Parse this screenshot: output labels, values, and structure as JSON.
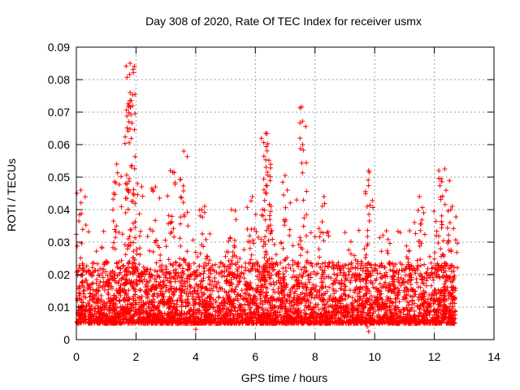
{
  "chart_data": {
    "type": "scatter",
    "title": "Day 308 of 2020, Rate Of TEC Index for receiver usmx",
    "xlabel": "GPS time / hours",
    "ylabel": "ROTI / TECUs",
    "xlim": [
      0,
      14
    ],
    "ylim": [
      0,
      0.09
    ],
    "x_ticks": [
      "0",
      "2",
      "4",
      "6",
      "8",
      "10",
      "12",
      "14"
    ],
    "y_ticks": [
      "0",
      "0.01",
      "0.02",
      "0.03",
      "0.04",
      "0.05",
      "0.06",
      "0.07",
      "0.08",
      "0.09"
    ],
    "grid": true,
    "marker": "plus",
    "color": "#ff0000",
    "series": [
      {
        "name": "ROTI",
        "x_range": [
          0,
          12.7
        ],
        "typical_range": [
          0.005,
          0.03
        ],
        "peaks": [
          {
            "x": 0.15,
            "y": 0.046
          },
          {
            "x": 1.35,
            "y": 0.054
          },
          {
            "x": 1.8,
            "y": 0.085
          },
          {
            "x": 1.8,
            "y": 0.076
          },
          {
            "x": 1.8,
            "y": 0.0735
          },
          {
            "x": 2.05,
            "y": 0.048
          },
          {
            "x": 2.65,
            "y": 0.047
          },
          {
            "x": 3.15,
            "y": 0.052
          },
          {
            "x": 3.6,
            "y": 0.058
          },
          {
            "x": 4.3,
            "y": 0.041
          },
          {
            "x": 5.2,
            "y": 0.04
          },
          {
            "x": 5.9,
            "y": 0.044
          },
          {
            "x": 6.35,
            "y": 0.0635
          },
          {
            "x": 6.35,
            "y": 0.0553
          },
          {
            "x": 6.4,
            "y": 0.0515
          },
          {
            "x": 7.0,
            "y": 0.0505
          },
          {
            "x": 7.55,
            "y": 0.0716
          },
          {
            "x": 8.3,
            "y": 0.044
          },
          {
            "x": 9.8,
            "y": 0.052
          },
          {
            "x": 11.5,
            "y": 0.044
          },
          {
            "x": 12.15,
            "y": 0.052
          },
          {
            "x": 12.35,
            "y": 0.0525
          },
          {
            "x": 12.6,
            "y": 0.041
          }
        ],
        "minimum": {
          "x": 9.8,
          "y": 0.0025
        }
      }
    ]
  }
}
